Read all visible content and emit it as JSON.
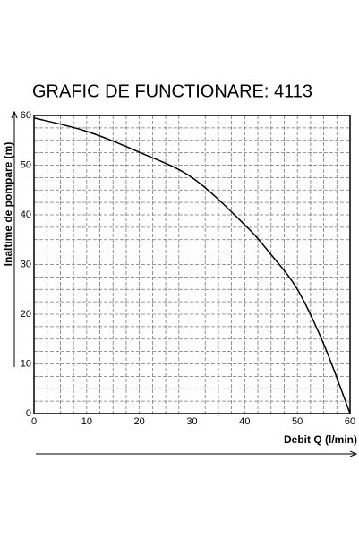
{
  "chart_data": {
    "type": "line",
    "title": "GRAFIC DE FUNCTIONARE: 4113",
    "x_label": "Debit  Q (l/min)",
    "y_label": "Inaltime de pompare (m)",
    "series": [
      {
        "color": "#000000",
        "x": [
          0,
          10,
          20,
          30,
          40,
          45,
          50,
          55,
          60
        ],
        "values": [
          59.5,
          56.8,
          52.6,
          47.5,
          38,
          32,
          25,
          14,
          0
        ]
      }
    ],
    "xlim": [
      0,
      60
    ],
    "xticks": [
      0,
      10,
      20,
      30,
      40,
      50,
      60
    ],
    "ylim": [
      0,
      60
    ],
    "yticks": [
      0,
      10,
      20,
      30,
      40,
      50,
      60
    ],
    "grid": true
  }
}
